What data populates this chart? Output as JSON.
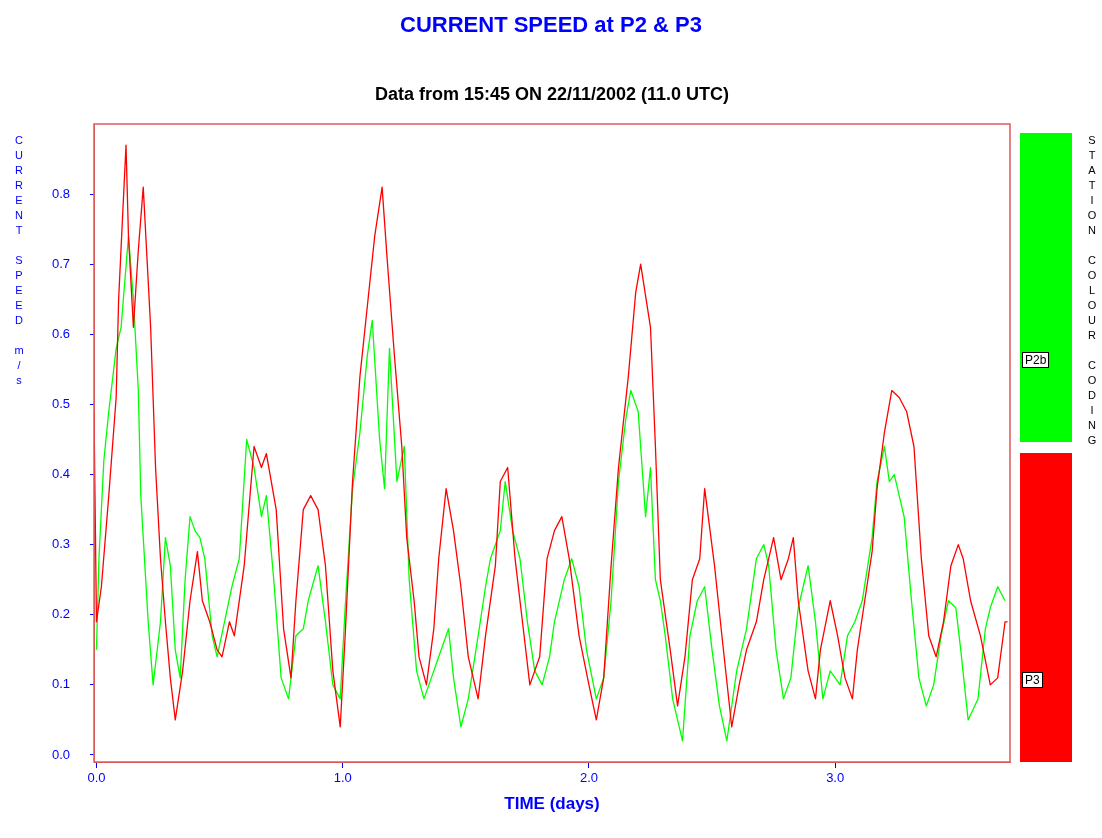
{
  "chart_data": {
    "type": "line",
    "title": "CURRENT SPEED at P2 & P3",
    "subtitle": "Data from 15:45 ON 22/11/2002 (11.0 UTC)",
    "xlabel": "TIME (days)",
    "ylabel": "CURRENT SPEED m/s",
    "legend_title": "STATION COLOUR CODING",
    "legend": "right",
    "marker": "none",
    "line_style": "solid",
    "xlim": [
      -0.01,
      3.71
    ],
    "ylim": [
      -0.01,
      0.9
    ],
    "xticks": [
      {
        "value": 0,
        "label": "0.0"
      },
      {
        "value": 1,
        "label": "1.0"
      },
      {
        "value": 2,
        "label": "2.0"
      },
      {
        "value": 3,
        "label": "3.0"
      }
    ],
    "yticks": [
      {
        "value": 0,
        "label": "0.0"
      },
      0.1,
      0.2,
      0.3,
      0.4,
      0.5,
      0.6,
      0.7,
      0.8
    ],
    "series": [
      {
        "name": "P2b",
        "color": "#00ff00",
        "x": [
          0.0,
          0.01,
          0.03,
          0.05,
          0.08,
          0.1,
          0.13,
          0.15,
          0.17,
          0.18,
          0.21,
          0.23,
          0.26,
          0.28,
          0.3,
          0.32,
          0.34,
          0.36,
          0.38,
          0.4,
          0.42,
          0.44,
          0.47,
          0.49,
          0.52,
          0.55,
          0.58,
          0.61,
          0.64,
          0.67,
          0.69,
          0.72,
          0.75,
          0.78,
          0.81,
          0.84,
          0.86,
          0.9,
          0.93,
          0.96,
          0.99,
          1.01,
          1.04,
          1.07,
          1.1,
          1.12,
          1.15,
          1.17,
          1.19,
          1.22,
          1.25,
          1.27,
          1.3,
          1.33,
          1.36,
          1.39,
          1.43,
          1.45,
          1.48,
          1.51,
          1.55,
          1.58,
          1.6,
          1.64,
          1.66,
          1.69,
          1.72,
          1.75,
          1.78,
          1.81,
          1.84,
          1.86,
          1.9,
          1.93,
          1.96,
          1.99,
          2.03,
          2.06,
          2.09,
          2.12,
          2.15,
          2.17,
          2.2,
          2.23,
          2.25,
          2.27,
          2.29,
          2.31,
          2.34,
          2.38,
          2.41,
          2.44,
          2.47,
          2.5,
          2.53,
          2.56,
          2.6,
          2.64,
          2.68,
          2.71,
          2.73,
          2.76,
          2.79,
          2.82,
          2.85,
          2.89,
          2.92,
          2.95,
          2.98,
          3.02,
          3.05,
          3.08,
          3.11,
          3.15,
          3.17,
          3.2,
          3.22,
          3.24,
          3.28,
          3.31,
          3.34,
          3.37,
          3.4,
          3.43,
          3.46,
          3.49,
          3.51,
          3.54,
          3.58,
          3.61,
          3.63,
          3.66,
          3.69
        ],
        "values": [
          0.15,
          0.28,
          0.42,
          0.49,
          0.58,
          0.61,
          0.74,
          0.65,
          0.52,
          0.37,
          0.19,
          0.1,
          0.19,
          0.31,
          0.27,
          0.15,
          0.11,
          0.25,
          0.34,
          0.32,
          0.31,
          0.28,
          0.17,
          0.14,
          0.19,
          0.24,
          0.28,
          0.45,
          0.41,
          0.34,
          0.37,
          0.25,
          0.11,
          0.08,
          0.17,
          0.18,
          0.22,
          0.27,
          0.19,
          0.1,
          0.08,
          0.21,
          0.38,
          0.46,
          0.57,
          0.62,
          0.45,
          0.38,
          0.58,
          0.39,
          0.44,
          0.25,
          0.12,
          0.08,
          0.11,
          0.14,
          0.18,
          0.11,
          0.04,
          0.08,
          0.17,
          0.24,
          0.28,
          0.32,
          0.39,
          0.32,
          0.28,
          0.19,
          0.12,
          0.1,
          0.14,
          0.19,
          0.25,
          0.28,
          0.24,
          0.15,
          0.08,
          0.11,
          0.22,
          0.39,
          0.48,
          0.52,
          0.49,
          0.34,
          0.41,
          0.25,
          0.22,
          0.17,
          0.08,
          0.02,
          0.17,
          0.22,
          0.24,
          0.15,
          0.07,
          0.02,
          0.12,
          0.18,
          0.28,
          0.3,
          0.27,
          0.15,
          0.08,
          0.11,
          0.21,
          0.27,
          0.19,
          0.08,
          0.12,
          0.1,
          0.17,
          0.19,
          0.22,
          0.31,
          0.39,
          0.44,
          0.39,
          0.4,
          0.34,
          0.22,
          0.11,
          0.07,
          0.1,
          0.17,
          0.22,
          0.21,
          0.15,
          0.05,
          0.08,
          0.18,
          0.21,
          0.24,
          0.22
        ]
      },
      {
        "name": "P3",
        "color": "#ff0000",
        "x": [
          -0.01,
          0.0,
          0.02,
          0.05,
          0.08,
          0.09,
          0.12,
          0.13,
          0.15,
          0.17,
          0.19,
          0.22,
          0.24,
          0.26,
          0.28,
          0.3,
          0.32,
          0.35,
          0.38,
          0.41,
          0.43,
          0.46,
          0.49,
          0.51,
          0.54,
          0.56,
          0.6,
          0.64,
          0.67,
          0.69,
          0.73,
          0.76,
          0.79,
          0.81,
          0.84,
          0.87,
          0.9,
          0.93,
          0.96,
          0.99,
          1.01,
          1.04,
          1.07,
          1.1,
          1.13,
          1.16,
          1.18,
          1.21,
          1.24,
          1.26,
          1.29,
          1.31,
          1.34,
          1.37,
          1.39,
          1.42,
          1.45,
          1.48,
          1.51,
          1.55,
          1.58,
          1.62,
          1.64,
          1.67,
          1.7,
          1.73,
          1.76,
          1.8,
          1.83,
          1.86,
          1.89,
          1.92,
          1.96,
          2.0,
          2.03,
          2.06,
          2.09,
          2.12,
          2.16,
          2.19,
          2.21,
          2.25,
          2.27,
          2.29,
          2.33,
          2.36,
          2.39,
          2.42,
          2.45,
          2.47,
          2.51,
          2.54,
          2.58,
          2.61,
          2.64,
          2.68,
          2.71,
          2.73,
          2.75,
          2.78,
          2.81,
          2.83,
          2.85,
          2.89,
          2.92,
          2.94,
          2.98,
          3.01,
          3.04,
          3.07,
          3.09,
          3.12,
          3.15,
          3.17,
          3.2,
          3.23,
          3.26,
          3.29,
          3.32,
          3.35,
          3.38,
          3.41,
          3.44,
          3.47,
          3.5,
          3.52,
          3.55,
          3.59,
          3.63,
          3.66,
          3.69,
          3.7
        ],
        "values": [
          0.49,
          0.19,
          0.24,
          0.37,
          0.51,
          0.65,
          0.87,
          0.74,
          0.61,
          0.72,
          0.81,
          0.61,
          0.41,
          0.28,
          0.19,
          0.11,
          0.05,
          0.12,
          0.22,
          0.29,
          0.22,
          0.19,
          0.15,
          0.14,
          0.19,
          0.17,
          0.27,
          0.44,
          0.41,
          0.43,
          0.35,
          0.18,
          0.11,
          0.22,
          0.35,
          0.37,
          0.35,
          0.27,
          0.12,
          0.04,
          0.17,
          0.39,
          0.54,
          0.64,
          0.74,
          0.81,
          0.71,
          0.57,
          0.44,
          0.31,
          0.22,
          0.14,
          0.1,
          0.18,
          0.28,
          0.38,
          0.32,
          0.24,
          0.14,
          0.08,
          0.17,
          0.27,
          0.39,
          0.41,
          0.28,
          0.19,
          0.1,
          0.14,
          0.28,
          0.32,
          0.34,
          0.28,
          0.17,
          0.1,
          0.05,
          0.11,
          0.27,
          0.41,
          0.54,
          0.66,
          0.7,
          0.61,
          0.44,
          0.25,
          0.15,
          0.07,
          0.14,
          0.25,
          0.28,
          0.38,
          0.27,
          0.17,
          0.04,
          0.1,
          0.15,
          0.19,
          0.25,
          0.28,
          0.31,
          0.25,
          0.28,
          0.31,
          0.22,
          0.12,
          0.08,
          0.15,
          0.22,
          0.17,
          0.11,
          0.08,
          0.15,
          0.22,
          0.29,
          0.38,
          0.46,
          0.52,
          0.51,
          0.49,
          0.44,
          0.28,
          0.17,
          0.14,
          0.19,
          0.27,
          0.3,
          0.28,
          0.22,
          0.17,
          0.1,
          0.11,
          0.19,
          0.19
        ]
      }
    ]
  }
}
